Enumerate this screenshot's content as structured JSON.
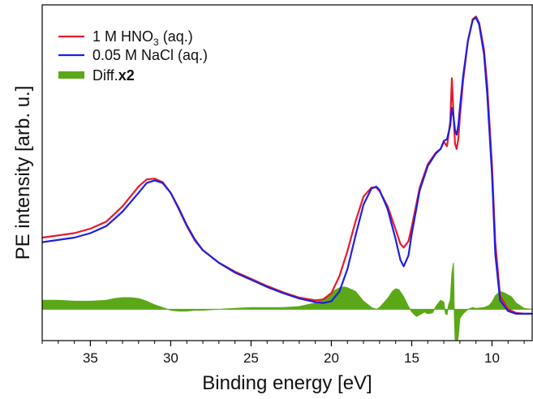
{
  "chart_data": {
    "type": "line",
    "title": "",
    "xlabel": "Binding energy [eV]",
    "ylabel": "PE intensity [arb. u.]",
    "x_reversed": true,
    "xlim": [
      38,
      7.5
    ],
    "ylim": [
      -0.35,
      3.4
    ],
    "x_ticks": [
      35,
      30,
      25,
      20,
      15,
      10
    ],
    "x_tick_labels": [
      "35",
      "30",
      "25",
      "20",
      "15",
      "10"
    ],
    "y_tick_labels_shown": false,
    "grid": false,
    "legend_position": "top-left",
    "series": [
      {
        "name_parts": [
          "1 M HNO",
          "3",
          " (aq.)"
        ],
        "color": "#e8192c",
        "style": "line",
        "x": [
          38,
          36,
          35,
          34,
          33,
          32,
          31.5,
          31,
          30.5,
          30,
          29.5,
          29,
          28.5,
          28,
          27,
          26,
          25,
          24,
          23,
          22,
          21,
          20.5,
          20,
          19.5,
          19,
          18.5,
          18,
          17.5,
          17.2,
          17,
          16.5,
          16,
          15.7,
          15.5,
          15.2,
          15,
          14.5,
          14,
          13.5,
          13.2,
          13,
          12.8,
          12.6,
          12.5,
          12.4,
          12.3,
          12.2,
          12.1,
          12,
          11.8,
          11.5,
          11.2,
          11,
          10.8,
          10.5,
          10.3,
          10,
          9.8,
          9.5,
          9,
          8.5,
          8,
          7.5
        ],
        "y": [
          0.8,
          0.85,
          0.9,
          0.98,
          1.15,
          1.37,
          1.45,
          1.46,
          1.42,
          1.3,
          1.12,
          0.93,
          0.77,
          0.66,
          0.52,
          0.42,
          0.34,
          0.26,
          0.19,
          0.13,
          0.1,
          0.11,
          0.18,
          0.37,
          0.65,
          0.98,
          1.26,
          1.36,
          1.36,
          1.32,
          1.15,
          0.89,
          0.73,
          0.69,
          0.76,
          0.92,
          1.36,
          1.62,
          1.75,
          1.79,
          1.87,
          1.82,
          2.1,
          2.58,
          2.17,
          1.85,
          1.79,
          1.9,
          2.15,
          2.55,
          3.0,
          3.24,
          3.27,
          3.2,
          2.9,
          2.5,
          1.6,
          0.75,
          0.15,
          0.0,
          -0.04,
          -0.05,
          -0.05
        ]
      },
      {
        "name": "0.05 M NaCl (aq.)",
        "color": "#1f1fe0",
        "style": "line",
        "x": [
          38,
          36,
          35,
          34,
          33,
          32,
          31.5,
          31,
          30.5,
          30,
          29.5,
          29,
          28.5,
          28,
          27,
          26,
          25,
          24,
          23,
          22,
          21,
          20.5,
          20,
          19.5,
          19,
          18.5,
          18,
          17.5,
          17.2,
          17,
          16.5,
          16,
          15.7,
          15.5,
          15.2,
          15,
          14.5,
          14,
          13.5,
          13.2,
          13,
          12.8,
          12.6,
          12.5,
          12.4,
          12.3,
          12.2,
          12.1,
          12,
          11.8,
          11.5,
          11.2,
          11,
          10.8,
          10.5,
          10.3,
          10,
          9.8,
          9.5,
          9,
          8.5,
          8,
          7.5
        ],
        "y": [
          0.75,
          0.8,
          0.85,
          0.93,
          1.09,
          1.3,
          1.41,
          1.44,
          1.41,
          1.3,
          1.13,
          0.94,
          0.78,
          0.66,
          0.52,
          0.41,
          0.33,
          0.25,
          0.18,
          0.12,
          0.08,
          0.07,
          0.09,
          0.2,
          0.45,
          0.82,
          1.17,
          1.35,
          1.37,
          1.33,
          1.12,
          0.78,
          0.55,
          0.48,
          0.6,
          0.84,
          1.33,
          1.6,
          1.74,
          1.79,
          1.88,
          1.9,
          2.05,
          2.25,
          2.15,
          2.0,
          1.95,
          2.05,
          2.25,
          2.6,
          3.0,
          3.23,
          3.26,
          3.18,
          2.85,
          2.4,
          1.5,
          0.62,
          0.1,
          -0.02,
          -0.05,
          -0.05,
          -0.05
        ]
      },
      {
        "name_parts": [
          "Diff.",
          "x2"
        ],
        "color": "#5aa817",
        "style": "filled-area",
        "baseline": 0,
        "x": [
          38,
          37,
          36,
          35,
          34,
          33.5,
          33,
          32.5,
          32,
          31.5,
          31,
          30.5,
          30,
          29.5,
          29,
          28.5,
          28,
          27,
          26,
          25,
          24,
          23,
          22,
          21.5,
          21,
          20.5,
          20,
          19.5,
          19.2,
          19,
          18.5,
          18,
          17.5,
          17.2,
          17,
          16.5,
          16.2,
          16,
          15.8,
          15.5,
          15.2,
          15,
          14.7,
          14.5,
          14.2,
          14,
          13.7,
          13.5,
          13.2,
          13,
          12.9,
          12.8,
          12.7,
          12.6,
          12.5,
          12.4,
          12.35,
          12.3,
          12.2,
          12.1,
          12,
          11.8,
          11.5,
          11.2,
          11,
          10.5,
          10.2,
          10,
          9.8,
          9.5,
          9.2,
          9,
          8.8,
          8.5,
          8,
          7.5
        ],
        "y": [
          0.1,
          0.1,
          0.09,
          0.09,
          0.1,
          0.12,
          0.13,
          0.13,
          0.12,
          0.09,
          0.05,
          0.02,
          -0.01,
          -0.02,
          -0.02,
          -0.01,
          -0.01,
          0.0,
          0.01,
          0.02,
          0.02,
          0.02,
          0.03,
          0.05,
          0.07,
          0.12,
          0.19,
          0.24,
          0.25,
          0.24,
          0.2,
          0.09,
          0.02,
          0.0,
          0.02,
          0.12,
          0.2,
          0.23,
          0.22,
          0.14,
          0.03,
          -0.03,
          -0.08,
          -0.06,
          -0.03,
          -0.05,
          -0.04,
          0.03,
          0.1,
          0.08,
          -0.05,
          -0.06,
          0.05,
          0.1,
          0.4,
          0.52,
          -0.05,
          -0.32,
          -0.41,
          -0.3,
          -0.1,
          -0.05,
          0.0,
          0.02,
          0.01,
          0.02,
          0.04,
          0.08,
          0.15,
          0.2,
          0.18,
          0.16,
          0.14,
          0.07,
          0.01,
          0.0
        ]
      }
    ]
  }
}
